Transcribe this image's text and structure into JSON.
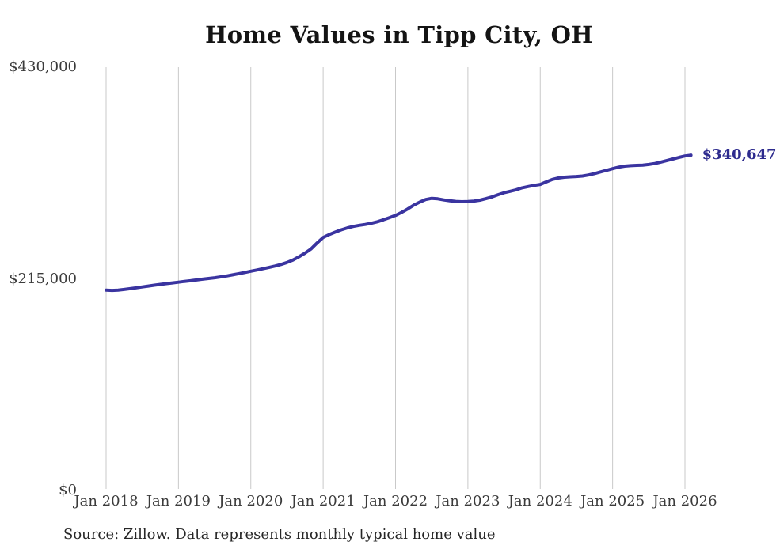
{
  "page": {
    "background_color": "#ffffff"
  },
  "chart": {
    "title": "Home Values in Tipp City, OH",
    "end_label": "$340,647",
    "source_note": "Source: Zillow. Data represents monthly typical home value"
  },
  "colors": {
    "line": "#3a34a0",
    "end_label_text": "#2d2b8e",
    "gridline": "#c9c9c9",
    "axis_text": "#3b3b3b",
    "title_text": "#141414",
    "source_text": "#262626",
    "background": "#ffffff"
  },
  "chart_data": {
    "type": "line",
    "title": "Home Values in Tipp City, OH",
    "xlabel": "",
    "ylabel": "",
    "x_frequency": "monthly",
    "x_start": "Jan 2018",
    "x_end": "Feb 2026",
    "x_tick_labels": [
      "Jan 2018",
      "Jan 2019",
      "Jan 2020",
      "Jan 2021",
      "Jan 2022",
      "Jan 2023",
      "Jan 2024",
      "Jan 2025",
      "Jan 2026"
    ],
    "y_ticks": [
      {
        "label": "$430,000",
        "value": 430000
      },
      {
        "label": "$215,000",
        "value": 215000
      },
      {
        "label": "$0",
        "value": 0
      }
    ],
    "ylim": [
      0,
      430000
    ],
    "grid": "vertical-only",
    "legend": "none",
    "annotation": {
      "text": "$340,647",
      "position": "end-of-line"
    },
    "source": "Source: Zillow. Data represents monthly typical home value",
    "series": [
      {
        "name": "Monthly typical home value",
        "last_value": 340647,
        "values": [
          203500,
          203300,
          203600,
          204200,
          205000,
          205900,
          206800,
          207700,
          208600,
          209400,
          210200,
          210900,
          211600,
          212400,
          213100,
          213900,
          214700,
          215400,
          216100,
          217000,
          218000,
          219100,
          220300,
          221500,
          222800,
          224000,
          225300,
          226600,
          228000,
          229600,
          231600,
          234200,
          237500,
          241200,
          245500,
          251500,
          257000,
          260000,
          262500,
          264800,
          266800,
          268300,
          269400,
          270300,
          271500,
          273000,
          275000,
          277200,
          279500,
          282500,
          286000,
          289800,
          293000,
          295600,
          296800,
          296300,
          295200,
          294300,
          293700,
          293400,
          293500,
          294000,
          295000,
          296500,
          298300,
          300500,
          302500,
          304000,
          305500,
          307500,
          308800,
          310000,
          311000,
          313500,
          316000,
          317500,
          318300,
          318700,
          319000,
          319500,
          320500,
          322000,
          323700,
          325300,
          327000,
          328500,
          329500,
          330000,
          330300,
          330600,
          331200,
          332200,
          333600,
          335200,
          336800,
          338400,
          339800,
          340647
        ]
      }
    ]
  }
}
